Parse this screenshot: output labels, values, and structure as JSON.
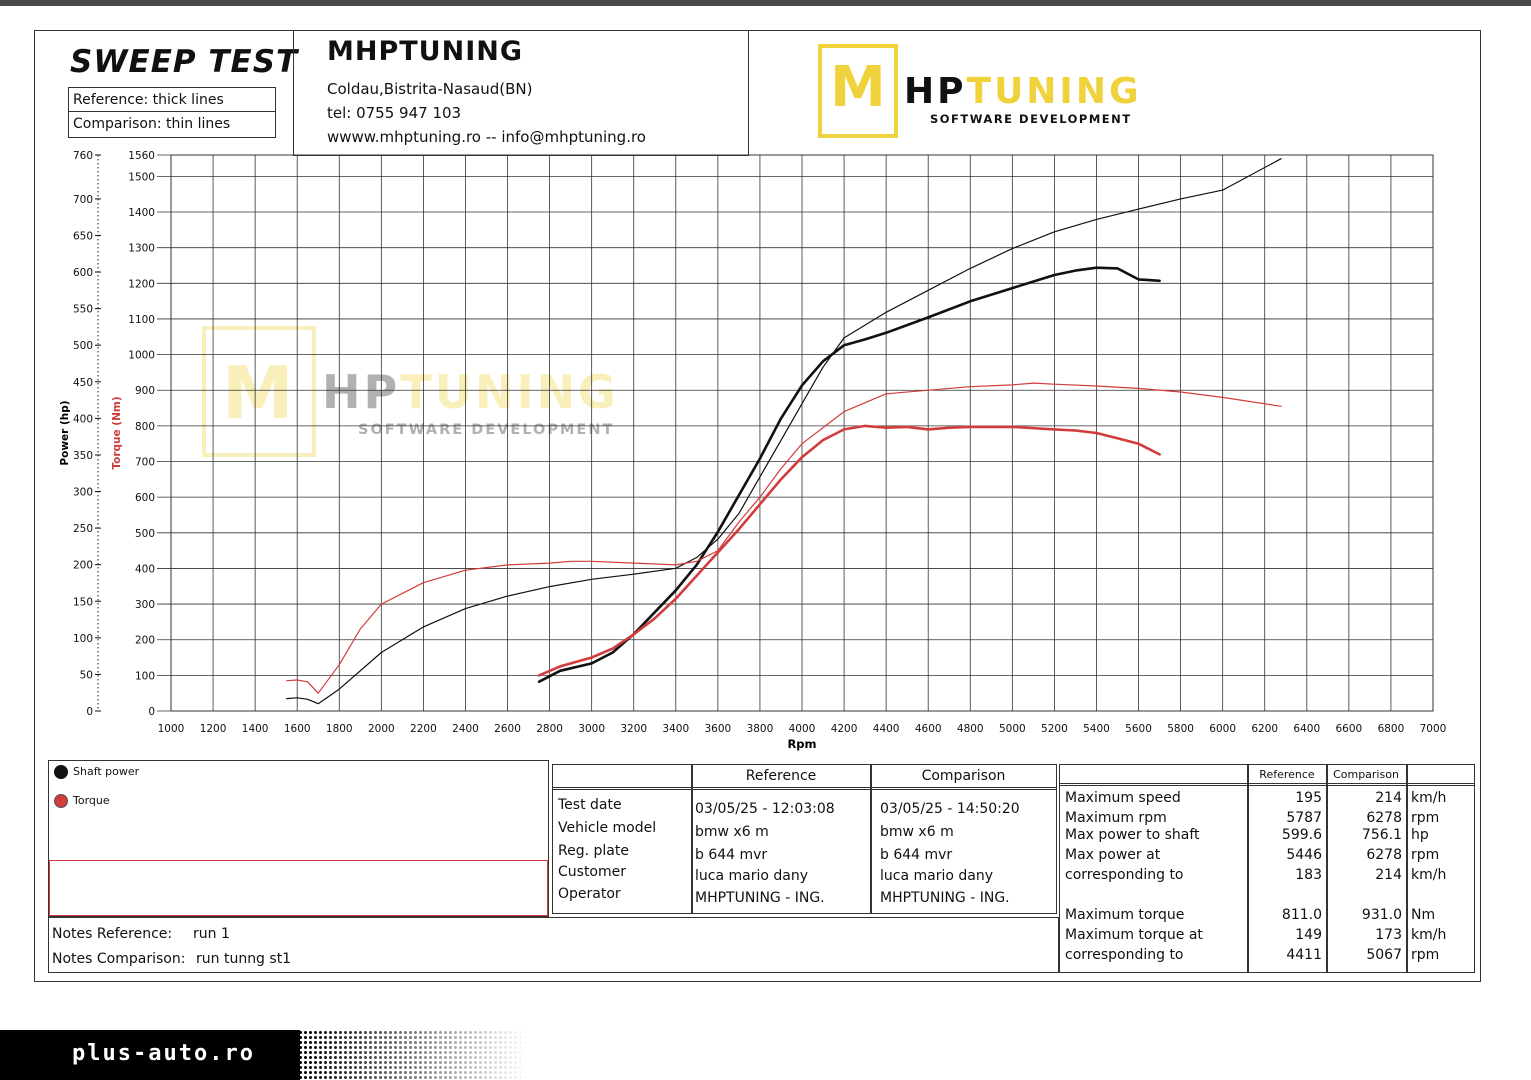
{
  "header": {
    "test_title": "SWEEP TEST",
    "legend_reference": "Reference: thick lines",
    "legend_comparison": "Comparison: thin lines",
    "company": "MHPTUNING",
    "address": "Coldau,Bistrita-Nasaud(BN)",
    "phone": "tel: 0755 947 103",
    "web": "wwww.mhptuning.ro -- info@mhptuning.ro"
  },
  "logo": {
    "m": "M",
    "hp": "HP",
    "tuning": "TUNING",
    "subtitle": "SOFTWARE DEVELOPMENT",
    "accent": "#f0d23c"
  },
  "chart_data": {
    "type": "line",
    "xlabel": "Rpm",
    "ylabel_power": "Power (hp)",
    "ylabel_torque": "Torque (Nm)",
    "x_ticks": [
      1000,
      1200,
      1400,
      1600,
      1800,
      2000,
      2200,
      2400,
      2600,
      2800,
      3000,
      3200,
      3400,
      3600,
      3800,
      4000,
      4200,
      4400,
      4600,
      4800,
      5000,
      5200,
      5400,
      5600,
      5800,
      6000,
      6200,
      6400,
      6600,
      6800,
      7000
    ],
    "power_ticks": [
      0,
      50,
      100,
      150,
      200,
      250,
      300,
      350,
      400,
      450,
      500,
      550,
      600,
      650,
      700,
      760
    ],
    "torque_ticks": [
      0,
      100,
      200,
      300,
      400,
      500,
      600,
      700,
      800,
      900,
      1000,
      1100,
      1200,
      1300,
      1400,
      1500,
      1560
    ],
    "xlim": [
      1000,
      7000
    ],
    "power_lim": [
      0,
      760
    ],
    "torque_lim": [
      0,
      1560
    ],
    "grid": true,
    "colors": {
      "power": "#111111",
      "torque": "#d23c3c",
      "grid": "#333333"
    },
    "series": [
      {
        "name": "Shaft power",
        "kind": "power",
        "run": "reference",
        "x": [
          2750,
          2850,
          3000,
          3100,
          3200,
          3300,
          3400,
          3500,
          3600,
          3700,
          3800,
          3900,
          4000,
          4100,
          4200,
          4300,
          4400,
          4600,
          4800,
          5000,
          5200,
          5300,
          5400,
          5500,
          5600,
          5700
        ],
        "y": [
          40,
          55,
          65,
          80,
          105,
          135,
          165,
          200,
          245,
          295,
          345,
          400,
          445,
          478,
          500,
          508,
          517,
          538,
          560,
          578,
          596,
          602,
          606,
          605,
          590,
          588
        ]
      },
      {
        "name": "Shaft power",
        "kind": "power",
        "run": "comparison",
        "x": [
          1550,
          1600,
          1650,
          1700,
          1800,
          2000,
          2200,
          2400,
          2600,
          2800,
          3000,
          3200,
          3400,
          3500,
          3600,
          3700,
          3800,
          3900,
          4000,
          4100,
          4200,
          4400,
          4600,
          4800,
          5000,
          5200,
          5400,
          5600,
          5800,
          6000,
          6278
        ],
        "y": [
          17,
          18,
          16,
          10,
          30,
          80,
          115,
          140,
          157,
          170,
          180,
          187,
          195,
          210,
          235,
          270,
          320,
          370,
          420,
          470,
          510,
          545,
          575,
          605,
          632,
          655,
          672,
          686,
          700,
          712,
          755
        ]
      },
      {
        "name": "Torque",
        "kind": "torque",
        "run": "reference",
        "x": [
          2750,
          2850,
          3000,
          3100,
          3200,
          3300,
          3400,
          3500,
          3600,
          3700,
          3800,
          3900,
          4000,
          4100,
          4200,
          4300,
          4400,
          4500,
          4600,
          4700,
          4800,
          5000,
          5200,
          5300,
          5400,
          5500,
          5600,
          5700
        ],
        "y": [
          100,
          125,
          150,
          175,
          215,
          260,
          315,
          380,
          445,
          510,
          580,
          650,
          712,
          760,
          790,
          800,
          795,
          797,
          790,
          795,
          797,
          797,
          790,
          787,
          780,
          765,
          750,
          720
        ]
      },
      {
        "name": "Torque",
        "kind": "torque",
        "run": "comparison",
        "x": [
          1550,
          1600,
          1650,
          1700,
          1800,
          1900,
          2000,
          2200,
          2400,
          2600,
          2800,
          2900,
          3000,
          3200,
          3400,
          3500,
          3600,
          3700,
          3800,
          3900,
          4000,
          4200,
          4400,
          4600,
          4800,
          5000,
          5100,
          5200,
          5400,
          5600,
          5800,
          6000,
          6278
        ],
        "y": [
          85,
          87,
          82,
          50,
          130,
          230,
          300,
          360,
          395,
          410,
          415,
          420,
          420,
          415,
          410,
          420,
          450,
          530,
          600,
          680,
          750,
          840,
          890,
          900,
          910,
          915,
          920,
          917,
          912,
          905,
          895,
          880,
          855
        ]
      }
    ]
  },
  "legend": {
    "power_label": "Shaft power",
    "torque_label": "Torque"
  },
  "notes": {
    "ref_label": "Notes Reference:",
    "ref_value": "run 1",
    "cmp_label": "Notes Comparison:",
    "cmp_value": "run tunng st1"
  },
  "vehicle": {
    "col_ref": "Reference",
    "col_cmp": "Comparison",
    "rows": [
      {
        "label": "Test date",
        "ref": "03/05/25 - 12:03:08",
        "cmp": "03/05/25 - 14:50:20"
      },
      {
        "label": "Vehicle model",
        "ref": "bmw x6 m",
        "cmp": "bmw x6 m"
      },
      {
        "label": "Reg. plate",
        "ref": "b 644 mvr",
        "cmp": "b 644 mvr"
      },
      {
        "label": "Customer",
        "ref": "luca mario dany",
        "cmp": "luca mario dany"
      },
      {
        "label": "Operator",
        "ref": "MHPTUNING - ING.",
        "cmp": "MHPTUNING - ING."
      }
    ]
  },
  "results": {
    "col_ref": "Reference",
    "col_cmp": "Comparison",
    "rows": [
      {
        "label": "Maximum speed",
        "ref": "195",
        "cmp": "214",
        "unit": "km/h"
      },
      {
        "label": "Maximum rpm",
        "ref": "5787",
        "cmp": "6278",
        "unit": "rpm"
      },
      {
        "label": "Max power to shaft",
        "ref": "599.6",
        "cmp": "756.1",
        "unit": "hp"
      },
      {
        "label": "Max power at",
        "ref": "5446",
        "cmp": "6278",
        "unit": "rpm"
      },
      {
        "label": "corresponding to",
        "ref": "183",
        "cmp": "214",
        "unit": "km/h"
      },
      {
        "label": "Maximum torque",
        "ref": "811.0",
        "cmp": "931.0",
        "unit": "Nm"
      },
      {
        "label": "Maximum torque at",
        "ref": "149",
        "cmp": "173",
        "unit": "km/h"
      },
      {
        "label": "corresponding to",
        "ref": "4411",
        "cmp": "5067",
        "unit": "rpm"
      }
    ]
  },
  "footer": {
    "site": "plus-auto.ro"
  }
}
